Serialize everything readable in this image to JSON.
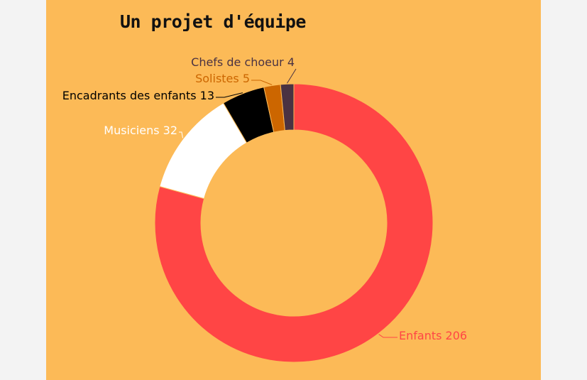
{
  "chart_data": {
    "type": "pie",
    "variant": "donut",
    "title": "Un projet d'équipe",
    "slices": [
      {
        "name": "Enfants",
        "value": 206,
        "label": "Enfants 206",
        "color": "#ff4545"
      },
      {
        "name": "Musiciens",
        "value": 32,
        "label": "Musiciens 32",
        "color": "#ffffff"
      },
      {
        "name": "Encadrants des enfants",
        "value": 13,
        "label": "Encadrants des enfants 13",
        "color": "#000000"
      },
      {
        "name": "Solistes",
        "value": 5,
        "label": "Solistes 5",
        "color": "#cc6600"
      },
      {
        "name": "Chefs de choeur",
        "value": 4,
        "label": "Chefs de choeur 4",
        "color": "#4a3242"
      }
    ],
    "label_colors": [
      "#ff4545",
      "#ffffff",
      "#000000",
      "#cc6600",
      "#4a3242"
    ],
    "legend": "none",
    "background": "#fcba57"
  }
}
